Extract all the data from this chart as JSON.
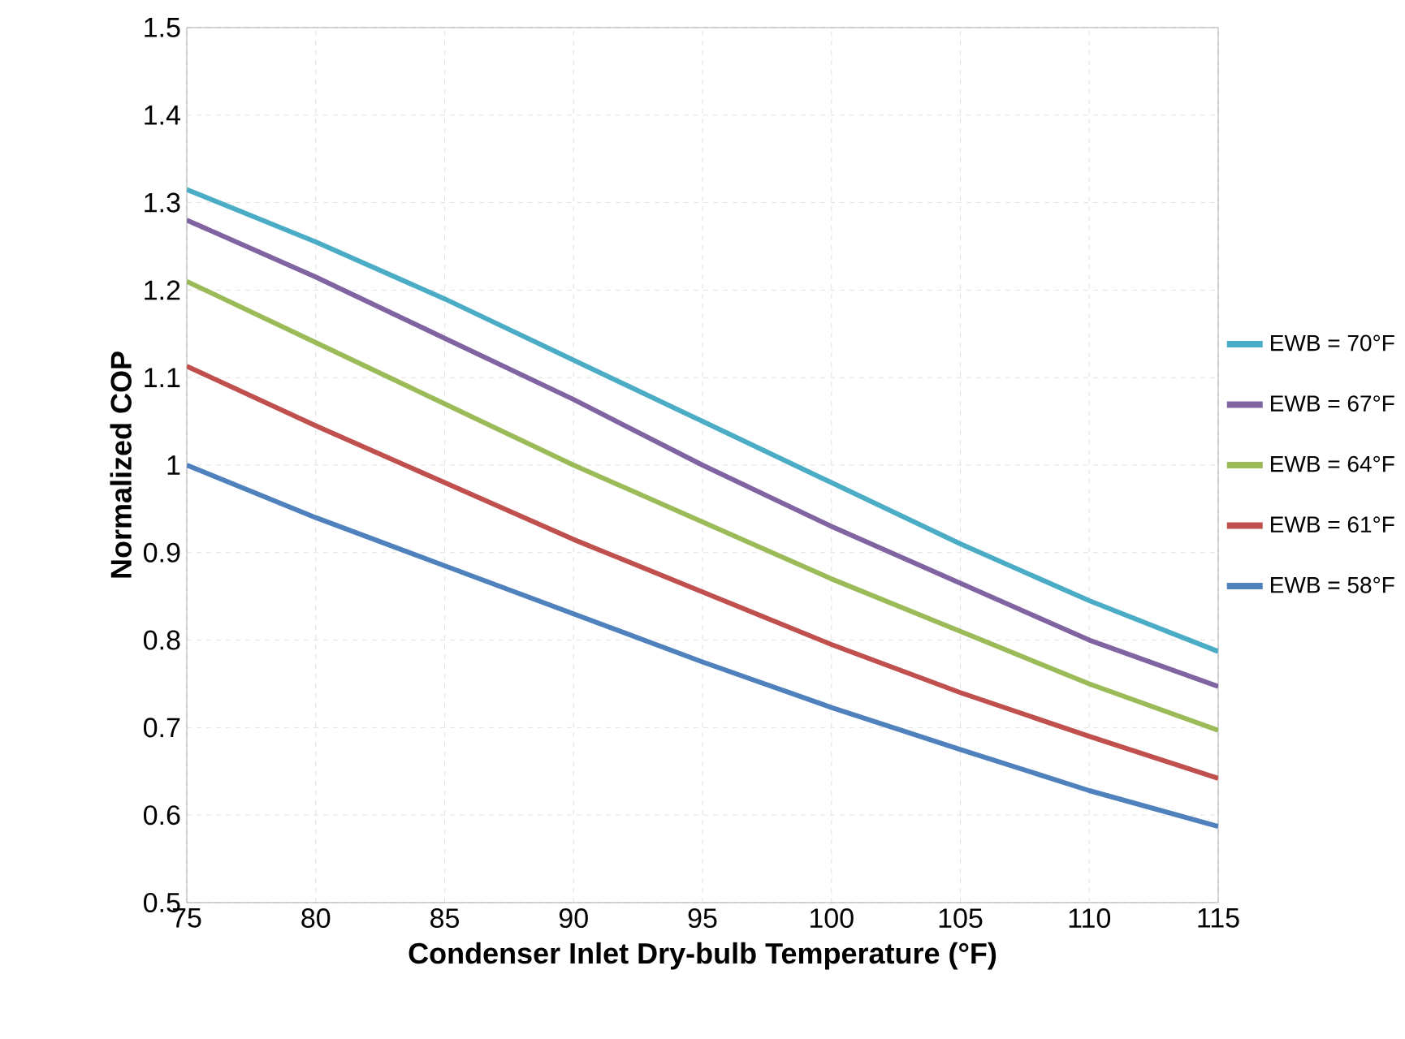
{
  "chart_data": {
    "type": "line",
    "xlabel": "Condenser Inlet Dry-bulb Temperature (°F)",
    "ylabel": "Normalized COP",
    "x": [
      75,
      80,
      85,
      90,
      95,
      100,
      105,
      110,
      115
    ],
    "series": [
      {
        "name": "EWB = 70°F",
        "color": "#4bacc6",
        "values": [
          1.315,
          1.255,
          1.19,
          1.12,
          1.05,
          0.98,
          0.91,
          0.845,
          0.787
        ]
      },
      {
        "name": "EWB = 67°F",
        "color": "#8064a2",
        "values": [
          1.28,
          1.215,
          1.145,
          1.075,
          1.0,
          0.93,
          0.865,
          0.8,
          0.747
        ]
      },
      {
        "name": "EWB = 64°F",
        "color": "#9bbb59",
        "values": [
          1.21,
          1.14,
          1.07,
          1.0,
          0.935,
          0.87,
          0.81,
          0.75,
          0.697
        ]
      },
      {
        "name": "EWB = 61°F",
        "color": "#c0504d",
        "values": [
          1.113,
          1.045,
          0.98,
          0.915,
          0.855,
          0.795,
          0.74,
          0.69,
          0.642
        ]
      },
      {
        "name": "EWB = 58°F",
        "color": "#4f81bd",
        "values": [
          1.0,
          0.94,
          0.885,
          0.83,
          0.775,
          0.723,
          0.675,
          0.628,
          0.587
        ]
      }
    ],
    "xlim": [
      75,
      115
    ],
    "xticks": [
      75,
      80,
      85,
      90,
      95,
      100,
      105,
      110,
      115
    ],
    "ylim": [
      0.5,
      1.5
    ],
    "yticks": [
      0.5,
      0.6,
      0.7,
      0.8,
      0.9,
      1,
      1.1,
      1.2,
      1.3,
      1.4,
      1.5
    ],
    "grid": true,
    "legend": "right",
    "marker": "none",
    "line_style": "solid"
  }
}
